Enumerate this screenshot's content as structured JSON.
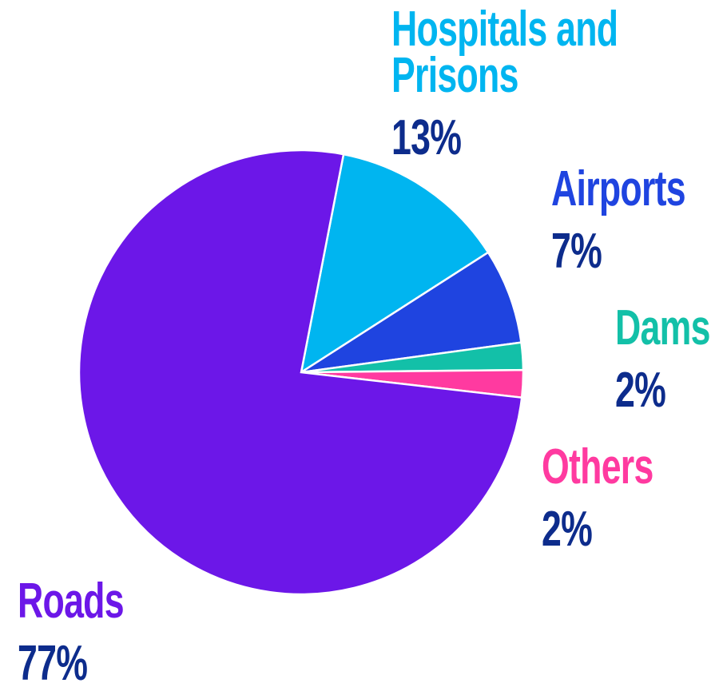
{
  "chart_data": {
    "type": "pie",
    "categories": [
      "Hospitals and Prisons",
      "Airports",
      "Dams",
      "Others",
      "Roads"
    ],
    "values": [
      13,
      7,
      2,
      2,
      77
    ],
    "value_labels": [
      "13%",
      "7%",
      "2%",
      "2%",
      "77%"
    ],
    "colors": [
      "#00b5f0",
      "#1f44e0",
      "#13c0a8",
      "#ff3aa0",
      "#6c17e8"
    ],
    "value_label_color": "#0d2c8c"
  }
}
